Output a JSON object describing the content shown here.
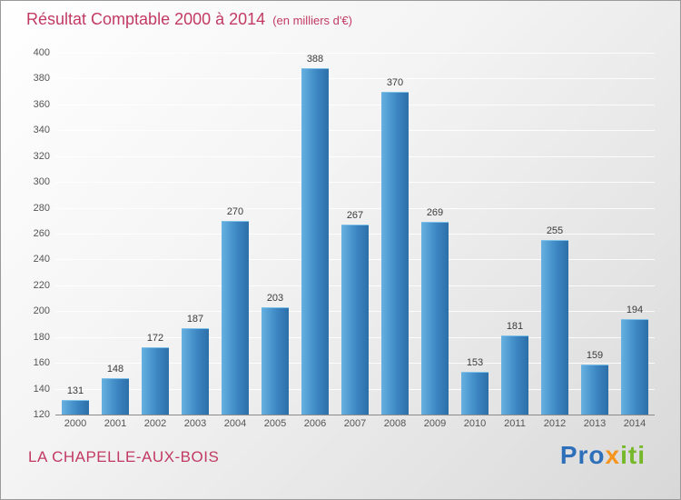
{
  "header": {
    "title": "Résultat Comptable 2000 à 2014",
    "subtitle": "(en milliers d'€)"
  },
  "chart_data": {
    "type": "bar",
    "title": "Résultat Comptable 2000 à 2014",
    "subtitle": "(en milliers d'€)",
    "categories": [
      "2000",
      "2001",
      "2002",
      "2003",
      "2004",
      "2005",
      "2006",
      "2007",
      "2008",
      "2009",
      "2010",
      "2011",
      "2012",
      "2013",
      "2014"
    ],
    "values": [
      131,
      148,
      172,
      187,
      270,
      203,
      388,
      267,
      370,
      269,
      153,
      181,
      255,
      159,
      194
    ],
    "xlabel": "",
    "ylabel": "",
    "ylim": [
      120,
      400
    ],
    "ytick_step": 20,
    "grid": true,
    "legend": false,
    "bar_color": "#3d87c4",
    "value_labels": true
  },
  "footer": {
    "commune": "LA CHAPELLE-AUX-BOIS"
  },
  "logo": {
    "text": "Proxiti",
    "letters": [
      {
        "ch": "P",
        "color": "#2e6fba"
      },
      {
        "ch": "r",
        "color": "#2e6fba"
      },
      {
        "ch": "o",
        "color": "#2e6fba"
      },
      {
        "ch": "x",
        "color": "#f7941d"
      },
      {
        "ch": "i",
        "color": "#76b82a"
      },
      {
        "ch": "t",
        "color": "#76b82a"
      },
      {
        "ch": "i",
        "color": "#76b82a"
      }
    ]
  },
  "colors": {
    "title": "#c23a64",
    "axis_text": "#555555",
    "value_text": "#3a3a3a"
  }
}
